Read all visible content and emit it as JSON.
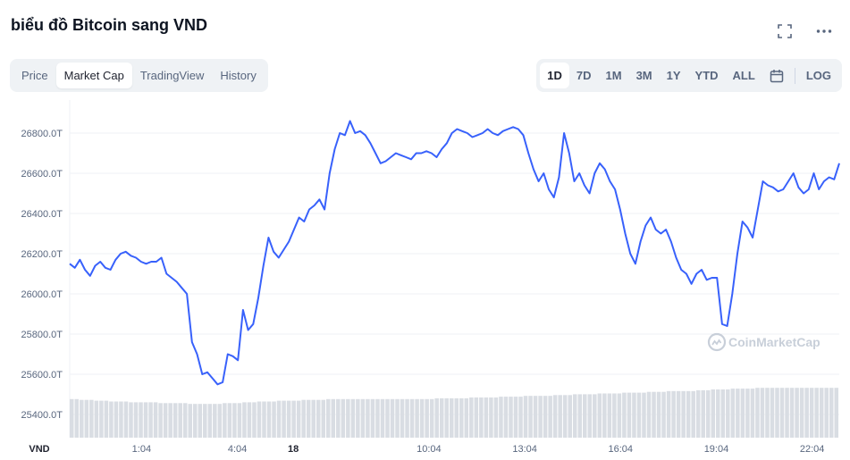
{
  "header": {
    "title": "biểu đồ Bitcoin sang VND",
    "fullscreen_icon": "fullscreen-icon",
    "more_icon": "more-horizontal-icon"
  },
  "tabs": [
    {
      "label": "Price",
      "active": false
    },
    {
      "label": "Market Cap",
      "active": true
    },
    {
      "label": "TradingView",
      "active": false
    },
    {
      "label": "History",
      "active": false
    }
  ],
  "ranges": [
    {
      "label": "1D",
      "active": true
    },
    {
      "label": "7D",
      "active": false
    },
    {
      "label": "1M",
      "active": false
    },
    {
      "label": "3M",
      "active": false
    },
    {
      "label": "1Y",
      "active": false
    },
    {
      "label": "YTD",
      "active": false
    },
    {
      "label": "ALL",
      "active": false
    }
  ],
  "calendar_icon": "calendar-icon",
  "log_label": "LOG",
  "watermark": "CoinMarketCap",
  "colors": {
    "line": "#3861fb",
    "grid": "#eff2f5",
    "volume": "#d9dde3",
    "text": "#58667e"
  },
  "chart_data": {
    "type": "line",
    "title": "biểu đồ Bitcoin sang VND",
    "ylabel": "VND",
    "ylim": [
      25400,
      26900
    ],
    "y_ticks": [
      "26800.0T",
      "26600.0T",
      "26400.0T",
      "26200.0T",
      "26000.0T",
      "25800.0T",
      "25600.0T",
      "25400.0T"
    ],
    "y_tick_values": [
      26800,
      26600,
      26400,
      26200,
      26000,
      25800,
      25600,
      25400
    ],
    "x_ticks": [
      {
        "label": "1:04",
        "t": 3.0,
        "bold": false
      },
      {
        "label": "4:04",
        "t": 6.0,
        "bold": false
      },
      {
        "label": "18",
        "t": 7.75,
        "bold": true
      },
      {
        "label": "10:04",
        "t": 12.0,
        "bold": false
      },
      {
        "label": "13:04",
        "t": 15.0,
        "bold": false
      },
      {
        "label": "16:04",
        "t": 18.0,
        "bold": false
      },
      {
        "label": "19:04",
        "t": 21.0,
        "bold": false
      },
      {
        "label": "22:04",
        "t": 24.0,
        "bold": false
      }
    ],
    "x_range": [
      0.75,
      24.85
    ],
    "grid": true,
    "series": [
      {
        "values": [
          26150,
          26130,
          26170,
          26120,
          26090,
          26140,
          26160,
          26130,
          26120,
          26170,
          26200,
          26210,
          26190,
          26180,
          26160,
          26150,
          26160,
          26160,
          26180,
          26100,
          26080,
          26060,
          26030,
          26000,
          25760,
          25700,
          25600,
          25610,
          25580,
          25550,
          25560,
          25700,
          25690,
          25670,
          25920,
          25820,
          25850,
          25980,
          26140,
          26280,
          26210,
          26180,
          26220,
          26260,
          26320,
          26380,
          26360,
          26420,
          26440,
          26470,
          26420,
          26600,
          26720,
          26800,
          26790,
          26860,
          26800,
          26810,
          26790,
          26750,
          26700,
          26650,
          26660,
          26680,
          26700,
          26690,
          26680,
          26670,
          26700,
          26700,
          26710,
          26700,
          26680,
          26720,
          26750,
          26800,
          26820,
          26810,
          26800,
          26780,
          26790,
          26800,
          26820,
          26800,
          26790,
          26810,
          26820,
          26830,
          26820,
          26790,
          26700,
          26620,
          26560,
          26600,
          26520,
          26480,
          26580,
          26800,
          26700,
          26560,
          26600,
          26540,
          26500,
          26600,
          26650,
          26620,
          26560,
          26520,
          26420,
          26300,
          26200,
          26150,
          26260,
          26340,
          26380,
          26320,
          26300,
          26320,
          26260,
          26180,
          26120,
          26100,
          26050,
          26100,
          26120,
          26070,
          26080,
          26080,
          25850,
          25840,
          26000,
          26200,
          26360,
          26330,
          26280,
          26420,
          26560,
          26540,
          26530,
          26510,
          26520,
          26560,
          26600,
          26530,
          26500,
          26520,
          26600,
          26520,
          26560,
          26580,
          26570,
          26650
        ]
      }
    ],
    "volume": [
      48,
      48,
      47,
      47,
      47,
      46,
      46,
      46,
      45,
      45,
      45,
      45,
      44,
      44,
      44,
      44,
      44,
      44,
      43,
      43,
      43,
      43,
      43,
      43,
      42,
      42,
      42,
      42,
      42,
      42,
      42,
      43,
      43,
      43,
      43,
      44,
      44,
      44,
      45,
      45,
      45,
      45,
      46,
      46,
      46,
      46,
      46,
      47,
      47,
      47,
      47,
      47,
      48,
      48,
      48,
      48,
      48,
      48,
      48,
      48,
      48,
      48,
      48,
      48,
      48,
      48,
      48,
      48,
      48,
      48,
      48,
      48,
      48,
      48,
      49,
      49,
      49,
      49,
      49,
      49,
      49,
      50,
      50,
      50,
      50,
      50,
      50,
      51,
      51,
      51,
      51,
      51,
      52,
      52,
      52,
      52,
      52,
      52,
      53,
      53,
      53,
      53,
      54,
      54,
      54,
      54,
      54,
      55,
      55,
      55,
      55,
      55,
      56,
      56,
      56,
      56,
      56,
      57,
      57,
      57,
      57,
      58,
      58,
      58,
      58,
      58,
      58,
      59,
      59,
      59,
      60,
      60,
      60,
      60,
      61,
      61,
      61,
      61,
      61,
      62,
      62,
      62,
      62,
      62,
      62,
      62,
      62,
      62,
      62,
      62,
      62,
      62,
      62,
      62,
      62,
      62
    ]
  }
}
